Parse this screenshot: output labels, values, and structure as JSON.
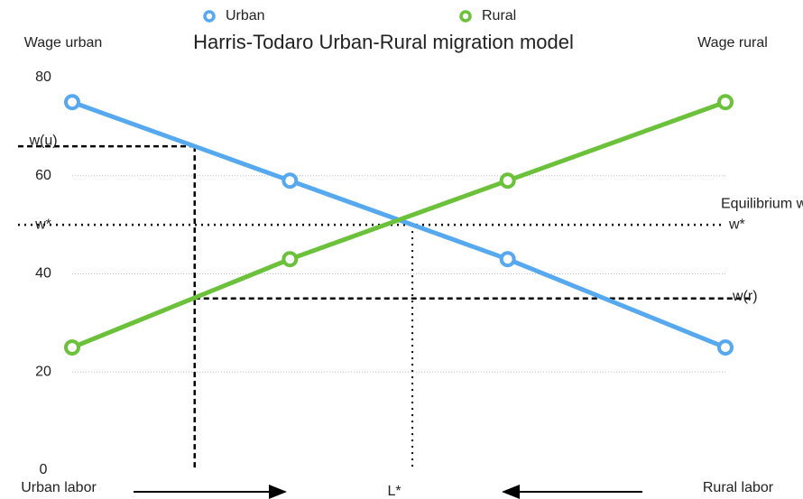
{
  "chart_data": {
    "type": "line",
    "title": "Harris-Todaro Urban-Rural migration model",
    "y_label": "Wage urban",
    "y2_label": "Wage rural",
    "categories": [
      null,
      null,
      null,
      null
    ],
    "series": [
      {
        "name": "Urban",
        "color": "#56a8ef",
        "values": [
          75,
          59,
          43,
          25
        ]
      },
      {
        "name": "Rural",
        "color": "#6cc13a",
        "values": [
          25,
          43,
          59,
          75
        ]
      }
    ],
    "ylim": [
      0,
      80
    ],
    "yticks": [
      0,
      20,
      40,
      60,
      80
    ],
    "grid": true,
    "legend": "top",
    "reference_lines": [
      {
        "label": "w(u)",
        "value": 66
      },
      {
        "label": "w*",
        "value": 50,
        "annotation": "Equilibrium wage"
      },
      {
        "label": "w(r)",
        "value": 35
      }
    ],
    "x_annotations": {
      "left": "Urban labor",
      "center": "L*",
      "right": "Rural labor"
    }
  }
}
